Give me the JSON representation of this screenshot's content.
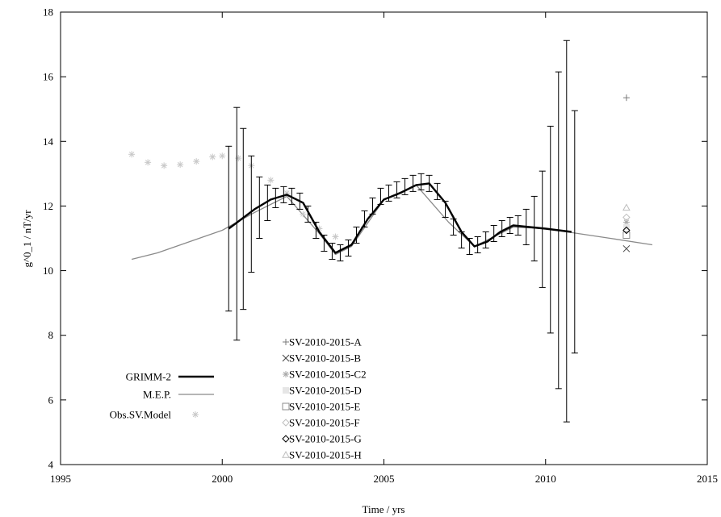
{
  "chart_data": {
    "type": "line",
    "title": "",
    "xlabel": "Time / yrs",
    "ylabel": "g^0_1 / nT/yr",
    "xlim": [
      1995,
      2015
    ],
    "ylim": [
      4,
      18
    ],
    "x_ticks": [
      "1995",
      "2000",
      "2005",
      "2010",
      "2015"
    ],
    "y_ticks": [
      "4",
      "6",
      "8",
      "10",
      "12",
      "14",
      "16",
      "18"
    ],
    "grid": false,
    "legend_left": {
      "placement": "bottom-left",
      "entries": [
        "GRIMM-2",
        "M.E.P.",
        "Obs.SV.Model"
      ]
    },
    "legend_center": {
      "placement": "bottom-center",
      "entries": [
        "SV-2010-2015-A",
        "SV-2010-2015-B",
        "SV-2010-2015-C2",
        "SV-2010-2015-D",
        "SV-2010-2015-E",
        "SV-2010-2015-F",
        "SV-2010-2015-G",
        "SV-2010-2015-H"
      ]
    },
    "grimm2_nodes": {
      "x": [
        2000.2,
        2000.6,
        2001.0,
        2001.5,
        2002.0,
        2002.5,
        2003.0,
        2003.5,
        2004.0,
        2004.5,
        2005.0,
        2005.5,
        2006.0,
        2006.4,
        2006.9,
        2007.4,
        2007.8,
        2008.2,
        2008.6,
        2009.0,
        2009.5,
        2010.0,
        2010.4,
        2010.8
      ],
      "y": [
        11.3,
        11.6,
        11.9,
        12.2,
        12.35,
        12.1,
        11.2,
        10.55,
        10.8,
        11.6,
        12.2,
        12.4,
        12.65,
        12.7,
        12.1,
        11.2,
        10.75,
        10.9,
        11.2,
        11.4,
        11.35,
        11.3,
        11.25,
        11.2
      ]
    },
    "errorbars": {
      "x": [
        2000.2,
        2000.45,
        2000.65,
        2000.9,
        2001.15,
        2001.4,
        2001.65,
        2001.9,
        2002.15,
        2002.4,
        2002.65,
        2002.9,
        2003.15,
        2003.4,
        2003.65,
        2003.9,
        2004.15,
        2004.4,
        2004.65,
        2004.9,
        2005.15,
        2005.4,
        2005.65,
        2005.9,
        2006.15,
        2006.4,
        2006.65,
        2006.9,
        2007.15,
        2007.4,
        2007.65,
        2007.9,
        2008.15,
        2008.4,
        2008.65,
        2008.9,
        2009.15,
        2009.4,
        2009.65,
        2009.9,
        2010.15,
        2010.4,
        2010.65,
        2010.9
      ],
      "y": [
        11.3,
        11.45,
        11.6,
        11.75,
        11.95,
        12.1,
        12.25,
        12.35,
        12.3,
        12.15,
        11.75,
        11.25,
        10.85,
        10.6,
        10.55,
        10.7,
        11.1,
        11.6,
        12.0,
        12.3,
        12.4,
        12.5,
        12.6,
        12.7,
        12.75,
        12.7,
        12.45,
        11.9,
        11.35,
        10.95,
        10.75,
        10.8,
        10.95,
        11.15,
        11.3,
        11.4,
        11.4,
        11.35,
        11.3,
        11.28,
        11.27,
        11.25,
        11.22,
        11.2
      ],
      "err": [
        2.55,
        3.6,
        2.8,
        1.8,
        0.95,
        0.55,
        0.3,
        0.25,
        0.25,
        0.25,
        0.25,
        0.25,
        0.25,
        0.25,
        0.25,
        0.25,
        0.25,
        0.25,
        0.25,
        0.25,
        0.25,
        0.25,
        0.25,
        0.25,
        0.25,
        0.25,
        0.25,
        0.25,
        0.25,
        0.25,
        0.25,
        0.25,
        0.25,
        0.25,
        0.25,
        0.25,
        0.3,
        0.55,
        1.0,
        1.8,
        3.2,
        4.9,
        5.9,
        3.75
      ]
    },
    "mep": {
      "x": [
        1997.2,
        1998.0,
        1999.0,
        2000.0,
        2001.0,
        2002.0,
        2003.0,
        2003.5,
        2004.0,
        2005.0,
        2006.0,
        2007.0,
        2007.8,
        2008.5,
        2009.0,
        2010.0,
        2011.0,
        2012.0,
        2013.3
      ],
      "y": [
        10.35,
        10.55,
        10.9,
        11.25,
        11.8,
        12.3,
        11.15,
        10.5,
        10.75,
        12.2,
        12.65,
        11.5,
        10.75,
        11.1,
        11.35,
        11.3,
        11.15,
        11.0,
        10.8
      ]
    },
    "obs_sv_model": {
      "x": [
        1997.2,
        1997.7,
        1998.2,
        1998.7,
        1999.2,
        1999.7,
        2000.0,
        2000.5,
        2000.9,
        2001.5,
        2002.0,
        2002.5,
        2003.0,
        2003.5
      ],
      "y": [
        13.6,
        13.35,
        13.25,
        13.28,
        13.38,
        13.52,
        13.55,
        13.48,
        13.25,
        12.8,
        12.4,
        11.75,
        11.3,
        11.05
      ]
    },
    "sv_2010_2015_models": [
      {
        "name": "SV-2010-2015-A",
        "x": 2012.5,
        "y": 15.35
      },
      {
        "name": "SV-2010-2015-B",
        "x": 2012.5,
        "y": 10.68
      },
      {
        "name": "SV-2010-2015-C2",
        "x": 2012.5,
        "y": 11.5
      },
      {
        "name": "SV-2010-2015-D",
        "x": 2012.5,
        "y": 11.35
      },
      {
        "name": "SV-2010-2015-E",
        "x": 2012.5,
        "y": 11.1
      },
      {
        "name": "SV-2010-2015-F",
        "x": 2012.5,
        "y": 11.65
      },
      {
        "name": "SV-2010-2015-G",
        "x": 2012.5,
        "y": 11.25
      },
      {
        "name": "SV-2010-2015-H",
        "x": 2012.5,
        "y": 11.95
      }
    ]
  }
}
